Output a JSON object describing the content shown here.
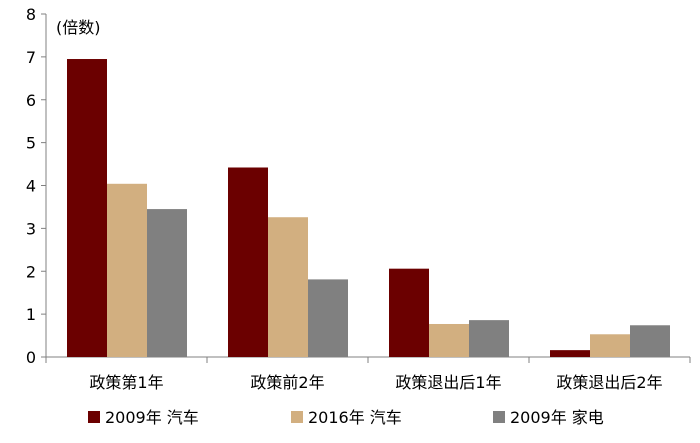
{
  "chart_data": {
    "type": "bar",
    "unit_label": "(倍数)",
    "categories": [
      "政策第1年",
      "政策前2年",
      "政策退出后1年",
      "政策退出后2年"
    ],
    "series": [
      {
        "name": "2009年 汽车",
        "color": "#6B0000",
        "values": [
          6.95,
          4.42,
          2.06,
          0.16
        ]
      },
      {
        "name": "2016年 汽车",
        "color": "#D2AF80",
        "values": [
          4.04,
          3.26,
          0.77,
          0.53
        ]
      },
      {
        "name": "2009年 家电",
        "color": "#808080",
        "values": [
          3.45,
          1.81,
          0.86,
          0.74
        ]
      }
    ],
    "ylim": [
      0,
      8
    ],
    "yticks": [
      "0",
      "1",
      "2",
      "3",
      "4",
      "5",
      "6",
      "7",
      "8"
    ],
    "legend_position": "bottom",
    "grid": false
  }
}
